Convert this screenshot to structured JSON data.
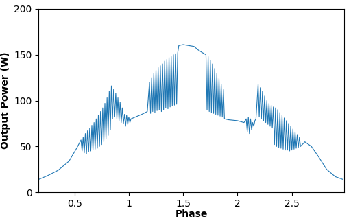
{
  "chart_data": {
    "type": "line",
    "x_label": "Phase",
    "y_label": "Output Power (W)",
    "xlim": [
      0.17,
      2.98
    ],
    "xticks": [
      0.5,
      1,
      1.5,
      2,
      2.5
    ],
    "ylim": [
      0,
      200
    ],
    "yticks": [
      0,
      50,
      100,
      150,
      200
    ],
    "grid": false,
    "color": "#1f77b4",
    "x": [
      0.17,
      0.25,
      0.35,
      0.45,
      0.52,
      0.56,
      0.57,
      0.58,
      0.59,
      0.6,
      0.61,
      0.62,
      0.63,
      0.64,
      0.65,
      0.66,
      0.67,
      0.68,
      0.69,
      0.7,
      0.71,
      0.72,
      0.73,
      0.74,
      0.75,
      0.76,
      0.77,
      0.78,
      0.79,
      0.8,
      0.81,
      0.82,
      0.83,
      0.84,
      0.85,
      0.86,
      0.87,
      0.88,
      0.89,
      0.9,
      0.91,
      0.92,
      0.93,
      0.94,
      0.95,
      0.96,
      0.97,
      0.98,
      0.99,
      1.0,
      1.01,
      1.02,
      1.06,
      1.12,
      1.17,
      1.19,
      1.2,
      1.21,
      1.22,
      1.23,
      1.24,
      1.25,
      1.26,
      1.27,
      1.28,
      1.29,
      1.3,
      1.31,
      1.32,
      1.33,
      1.34,
      1.35,
      1.36,
      1.37,
      1.38,
      1.39,
      1.4,
      1.41,
      1.42,
      1.43,
      1.44,
      1.45,
      1.46,
      1.5,
      1.55,
      1.6,
      1.64,
      1.68,
      1.71,
      1.72,
      1.73,
      1.74,
      1.75,
      1.76,
      1.77,
      1.78,
      1.79,
      1.8,
      1.81,
      1.82,
      1.83,
      1.84,
      1.85,
      1.86,
      1.87,
      1.88,
      1.92,
      2.0,
      2.06,
      2.08,
      2.09,
      2.1,
      2.11,
      2.12,
      2.13,
      2.14,
      2.15,
      2.16,
      2.17,
      2.19,
      2.2,
      2.21,
      2.22,
      2.23,
      2.24,
      2.25,
      2.26,
      2.27,
      2.28,
      2.29,
      2.3,
      2.31,
      2.32,
      2.33,
      2.34,
      2.35,
      2.36,
      2.37,
      2.38,
      2.39,
      2.4,
      2.41,
      2.42,
      2.43,
      2.44,
      2.45,
      2.46,
      2.47,
      2.48,
      2.49,
      2.5,
      2.51,
      2.52,
      2.53,
      2.54,
      2.55,
      2.56,
      2.57,
      2.58,
      2.62,
      2.68,
      2.75,
      2.82,
      2.9,
      2.97
    ],
    "values": [
      14,
      18,
      24,
      34,
      48,
      57,
      45,
      60,
      43,
      64,
      42,
      67,
      44,
      70,
      45,
      73,
      46,
      76,
      47,
      80,
      48,
      84,
      50,
      88,
      52,
      92,
      55,
      97,
      58,
      103,
      62,
      110,
      68,
      116,
      80,
      112,
      82,
      108,
      80,
      103,
      78,
      98,
      76,
      92,
      75,
      85,
      72,
      84,
      74,
      82,
      76,
      80,
      82,
      85,
      88,
      120,
      86,
      125,
      88,
      130,
      87,
      133,
      89,
      136,
      90,
      138,
      88,
      140,
      90,
      143,
      92,
      145,
      91,
      147,
      93,
      148,
      94,
      150,
      95,
      151,
      96,
      152,
      160,
      161,
      160,
      159,
      155,
      152,
      150,
      90,
      148,
      88,
      144,
      87,
      140,
      86,
      135,
      85,
      130,
      84,
      124,
      83,
      118,
      82,
      112,
      80,
      79,
      78,
      76,
      80,
      66,
      82,
      64,
      80,
      68,
      76,
      72,
      78,
      80,
      118,
      82,
      114,
      80,
      110,
      78,
      105,
      76,
      100,
      74,
      97,
      72,
      95,
      70,
      93,
      52,
      92,
      50,
      90,
      49,
      87,
      48,
      84,
      47,
      81,
      46,
      78,
      46,
      75,
      45,
      72,
      46,
      69,
      47,
      66,
      48,
      63,
      49,
      60,
      50,
      55,
      50,
      38,
      25,
      17,
      14
    ]
  }
}
